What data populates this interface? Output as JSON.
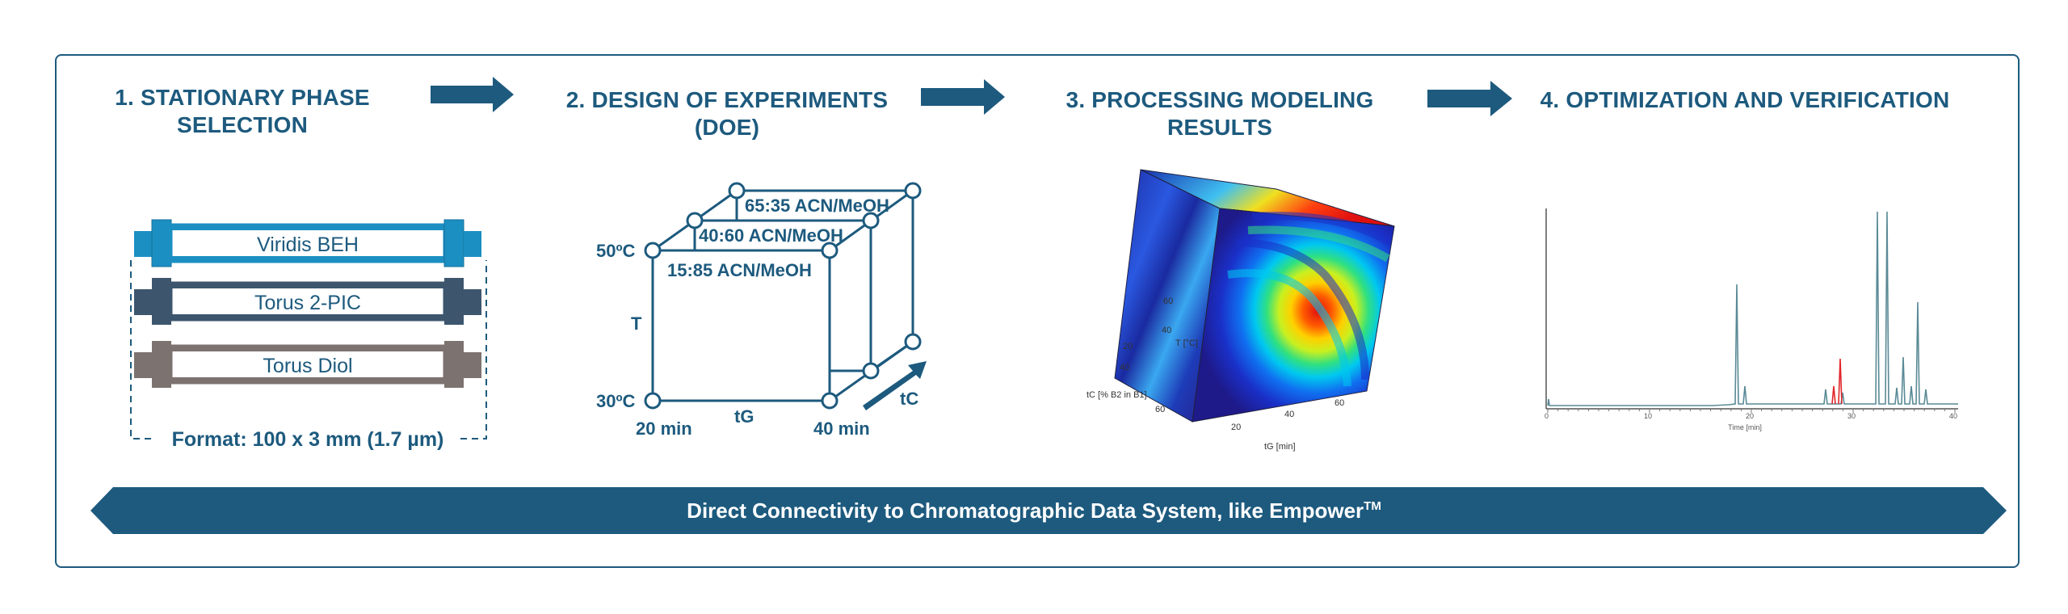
{
  "steps": [
    {
      "title_line1": "1. STATIONARY PHASE",
      "title_line2": "SELECTION"
    },
    {
      "title_line1": "2. DESIGN OF EXPERIMENTS",
      "title_line2": "(DOE)"
    },
    {
      "title_line1": "3. PROCESSING MODELING",
      "title_line2": "RESULTS"
    },
    {
      "title_line1": "4. OPTIMIZATION AND VERIFICATION",
      "title_line2": ""
    }
  ],
  "columns": {
    "items": [
      "Viridis BEH",
      "Torus 2-PIC",
      "Torus Diol"
    ],
    "colors": [
      "#1b8fc2",
      "#3d566e",
      "#7c7270"
    ],
    "format": "Format: 100 x 3 mm (1.7 µm)"
  },
  "doe": {
    "temp_high": "50ºC",
    "temp_low": "30ºC",
    "temp_axis": "T",
    "time_low": "20 min",
    "time_high": "40 min",
    "time_axis": "tG",
    "comp_axis": "tC",
    "solvent_1": "65:35 ACN/MeOH",
    "solvent_2": "40:60 ACN/MeOH",
    "solvent_3": "15:85 ACN/MeOH"
  },
  "model": {
    "axis_tc": "tC [% B2 in B1]",
    "axis_tg": "tG [min]",
    "axis_t": "T [°C]",
    "tick_20a": "20",
    "tick_40a": "40",
    "tick_60a": "60",
    "tick_20b": "20",
    "tick_40b": "40",
    "tick_60b": "60",
    "tick_40c": "40",
    "tick_60c": "60"
  },
  "chromatogram": {
    "x_label": "Time [min]",
    "tick_0": "0",
    "tick_10": "10",
    "tick_20": "20",
    "tick_30": "30",
    "tick_40": "40"
  },
  "banner": {
    "text": "Direct Connectivity to Chromatographic Data System, like Empower",
    "tm": "TM"
  },
  "colors": {
    "primary": "#1d5a7e",
    "highlight_peak": "#e0262b"
  }
}
